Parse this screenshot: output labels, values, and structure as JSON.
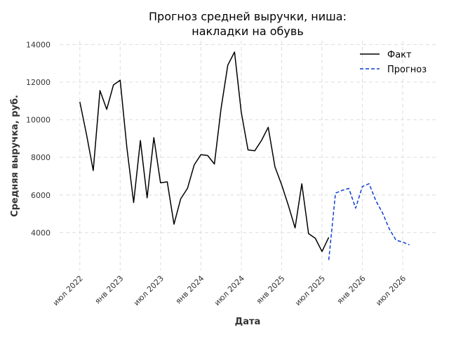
{
  "chart_data": {
    "type": "line",
    "title_lines": [
      "Прогноз средней выручки, ниша:",
      "накладки на обувь"
    ],
    "xlabel": "Дата",
    "ylabel": "Средняя выручка, руб.",
    "ylim": [
      2000,
      14200
    ],
    "xlim": [
      "2022-04",
      "2026-12"
    ],
    "y_ticks": [
      4000,
      6000,
      8000,
      10000,
      12000,
      14000
    ],
    "y_tick_labels": [
      "4000",
      "6000",
      "8000",
      "10000",
      "12000",
      "14000"
    ],
    "x_ticks": [
      {
        "date": "2022-07",
        "label": "июл 2022"
      },
      {
        "date": "2023-01",
        "label": "янв 2023"
      },
      {
        "date": "2023-07",
        "label": "июл 2023"
      },
      {
        "date": "2024-01",
        "label": "янв 2024"
      },
      {
        "date": "2024-07",
        "label": "июл 2024"
      },
      {
        "date": "2025-01",
        "label": "янв 2025"
      },
      {
        "date": "2025-07",
        "label": "июл 2025"
      },
      {
        "date": "2026-01",
        "label": "янв 2026"
      },
      {
        "date": "2026-07",
        "label": "июл 2026"
      }
    ],
    "grid": true,
    "legend_position": "top-right",
    "series": [
      {
        "name": "Факт",
        "color": "#000000",
        "style": "solid",
        "x": [
          "2022-07",
          "2022-08",
          "2022-09",
          "2022-10",
          "2022-11",
          "2022-12",
          "2023-01",
          "2023-02",
          "2023-03",
          "2023-04",
          "2023-05",
          "2023-06",
          "2023-07",
          "2023-08",
          "2023-09",
          "2023-10",
          "2023-11",
          "2023-12",
          "2024-01",
          "2024-02",
          "2024-03",
          "2024-04",
          "2024-05",
          "2024-06",
          "2024-07",
          "2024-08",
          "2024-09",
          "2024-10",
          "2024-11",
          "2024-12",
          "2025-01",
          "2025-02",
          "2025-03",
          "2025-04",
          "2025-05",
          "2025-06",
          "2025-07",
          "2025-08"
        ],
        "values": [
          10950,
          9200,
          7300,
          11550,
          10550,
          11850,
          12100,
          8500,
          5600,
          8900,
          5850,
          9050,
          6650,
          6700,
          4450,
          5800,
          6350,
          7600,
          8150,
          8100,
          7650,
          10600,
          12900,
          13600,
          10400,
          8400,
          8350,
          8900,
          9600,
          7500,
          6550,
          5450,
          4250,
          6600,
          3950,
          3700,
          3000,
          3750
        ]
      },
      {
        "name": "Прогноз",
        "color": "#0a3fd1",
        "style": "dashed",
        "x": [
          "2025-08",
          "2025-09",
          "2025-10",
          "2025-11",
          "2025-12",
          "2026-01",
          "2026-02",
          "2026-03",
          "2026-04",
          "2026-05",
          "2026-06",
          "2026-07",
          "2026-08"
        ],
        "values": [
          2550,
          6100,
          6250,
          6350,
          5300,
          6450,
          6600,
          5700,
          5050,
          4200,
          3600,
          3500,
          3350
        ]
      }
    ]
  }
}
